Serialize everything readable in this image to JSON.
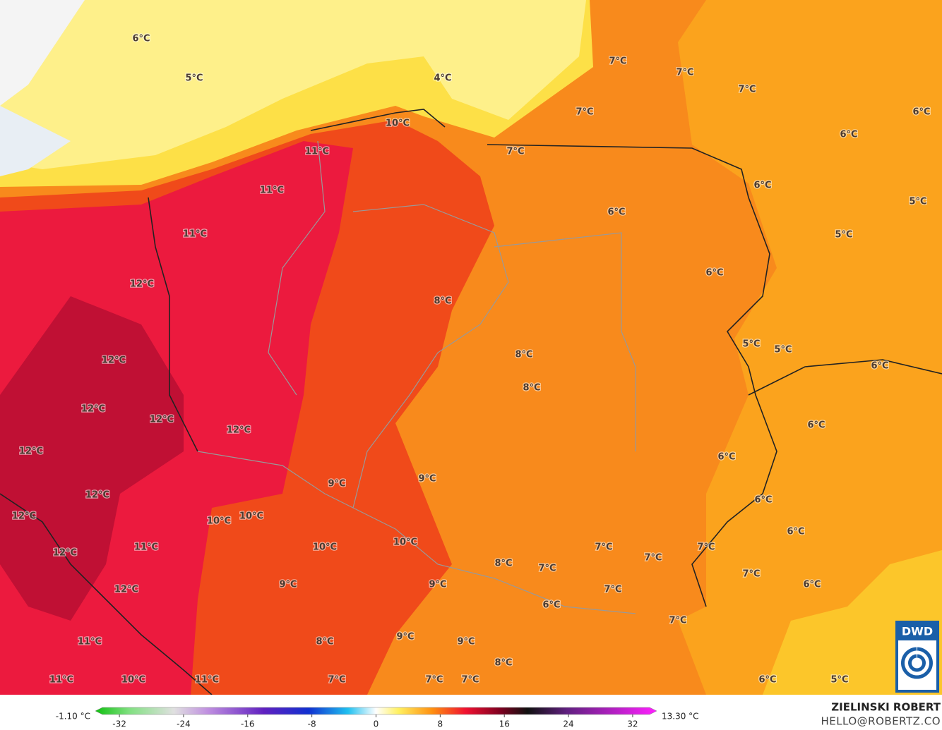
{
  "map": {
    "labels": [
      "6°C",
      "5°C",
      "4°C",
      "7°C",
      "7°C",
      "7°C",
      "7°C",
      "6°C",
      "10°C",
      "11°C",
      "7°C",
      "6°C",
      "11°C",
      "6°C",
      "6°C",
      "5°C",
      "11°C",
      "5°C",
      "6°C",
      "12°C",
      "8°C",
      "5°C",
      "5°C",
      "8°C",
      "12°C",
      "6°C",
      "8°C",
      "12°C",
      "12°C",
      "12°C",
      "6°C",
      "12°C",
      "6°C",
      "9°C",
      "9°C",
      "12°C",
      "6°C",
      "12°C",
      "10°C",
      "10°C",
      "6°C",
      "10°C",
      "10°C",
      "11°C",
      "12°C",
      "7°C",
      "7°C",
      "7°C",
      "8°C",
      "7°C",
      "7°C",
      "9°C",
      "9°C",
      "12°C",
      "6°C",
      "7°C",
      "6°C",
      "7°C",
      "9°C",
      "9°C",
      "8°C",
      "11°C",
      "8°C",
      "11°C",
      "10°C",
      "11°C",
      "7°C",
      "7°C",
      "7°C",
      "6°C",
      "5°C"
    ],
    "logo": "DWD"
  },
  "colorbar": {
    "min_label": "-1.10 °C",
    "max_label": "13.30 °C",
    "lim": [
      -35,
      35
    ],
    "ticks": [
      -32,
      -24,
      -16,
      -8,
      0,
      8,
      16,
      24,
      32
    ]
  },
  "credit": {
    "author": "ZIELINSKI ROBERT",
    "contact": "HELLO@ROBERTZ.CO"
  }
}
